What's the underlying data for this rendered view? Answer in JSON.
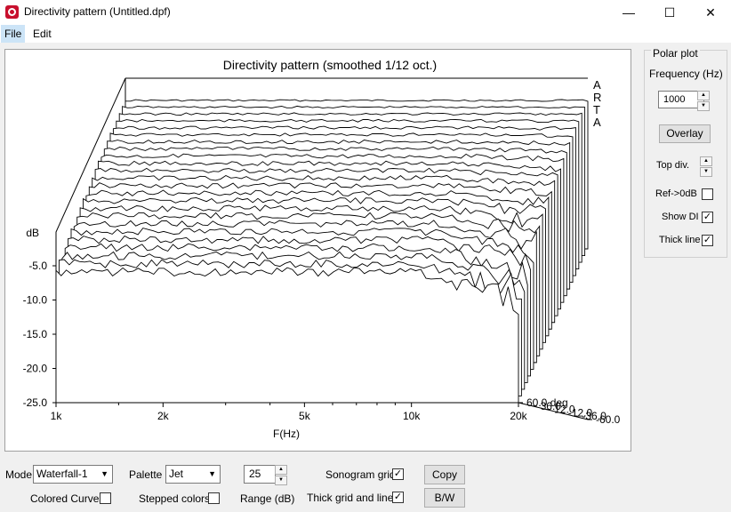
{
  "window": {
    "title": "Directivity pattern (Untitled.dpf)",
    "minimize": "—",
    "maximize": "☐",
    "close": "✕"
  },
  "menu": {
    "file": "File",
    "edit": "Edit"
  },
  "plot": {
    "title": "Directivity pattern (smoothed 1/12 oct.)",
    "watermark": [
      "A",
      "R",
      "T",
      "A"
    ],
    "ylabel": "dB",
    "xlabel": "F(Hz)",
    "y_ticks": [
      "-5.0",
      "-10.0",
      "-15.0",
      "-20.0",
      "-25.0"
    ],
    "x_ticks": [
      "1k",
      "2k",
      "5k",
      "10k",
      "20k"
    ],
    "angle_ticks": [
      "-60.0",
      "-36.0",
      "-12.0",
      "12.0",
      "36.0",
      "60.0 deg"
    ]
  },
  "chart_data": {
    "type": "line",
    "title": "Directivity pattern (smoothed 1/12 oct.)",
    "xlabel": "F(Hz)",
    "ylabel": "dB",
    "x_scale": "log",
    "xlim": [
      1000,
      20000
    ],
    "ylim": [
      -25,
      0
    ],
    "x_tick_labels": [
      "1k",
      "2k",
      "5k",
      "10k",
      "20k"
    ],
    "y_tick_labels": [
      "-5.0",
      "-10.0",
      "-15.0",
      "-20.0",
      "-25.0"
    ],
    "z_tick_labels": [
      "-60.0",
      "-36.0",
      "-12.0",
      "12.0",
      "36.0",
      "60.0 deg"
    ],
    "style": "waterfall"
  },
  "polar": {
    "group_title": "Polar plot",
    "frequency_label": "Frequency (Hz)",
    "frequency_value": "1000",
    "overlay_button": "Overlay",
    "top_div_label": "Top div.",
    "ref_label": "Ref->0dB",
    "ref_checked": "",
    "show_di_label": "Show DI",
    "show_di_checked": "✓",
    "thick_line_label": "Thick line",
    "thick_line_checked": "✓"
  },
  "bottom": {
    "mode_label": "Mode",
    "mode_value": "Waterfall-1",
    "palette_label": "Palette",
    "palette_value": "Jet",
    "range_value": "25",
    "range_label": "Range (dB)",
    "sonogram_grid_label": "Sonogram grid",
    "sonogram_grid_checked": "✓",
    "thick_grid_label": "Thick grid and  lines",
    "thick_grid_checked": "✓",
    "colored_curves_label": "Colored Curves",
    "colored_curves_checked": "",
    "stepped_colors_label": "Stepped colors",
    "stepped_colors_checked": "",
    "copy_button": "Copy",
    "bw_button": "B/W"
  }
}
